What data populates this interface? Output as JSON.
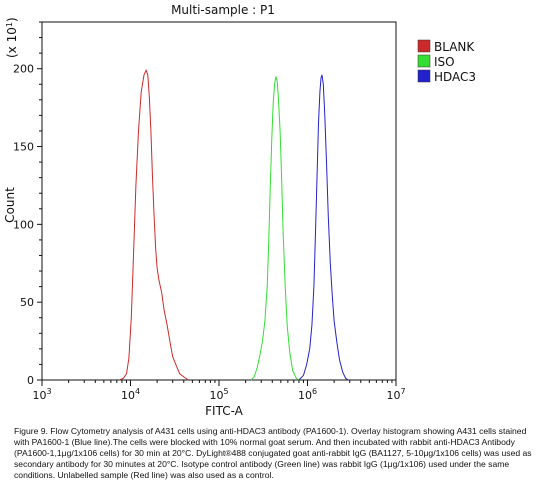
{
  "chart_data": {
    "type": "line",
    "title": "Multi-sample : P1",
    "xlabel": "FITC-A",
    "ylabel": "Count",
    "y_multiplier_label": "(x 10",
    "y_multiplier_exp": "1",
    "x_scale": "log",
    "xlim": [
      1000,
      10000000
    ],
    "ylim": [
      0,
      230
    ],
    "x_ticks": [
      {
        "base": "10",
        "exp": "3",
        "value": 1000
      },
      {
        "base": "10",
        "exp": "4",
        "value": 10000
      },
      {
        "base": "10",
        "exp": "5",
        "value": 100000
      },
      {
        "base": "10",
        "exp": "6",
        "value": 1000000
      },
      {
        "base": "10",
        "exp": "7",
        "value": 10000000
      }
    ],
    "y_ticks": [
      0,
      50,
      100,
      150,
      200
    ],
    "grid": false,
    "legend_position": "top-right",
    "series": [
      {
        "name": "BLANK",
        "color": "#cc2a2a",
        "points": [
          [
            7500,
            0
          ],
          [
            8300,
            1
          ],
          [
            9000,
            4
          ],
          [
            9600,
            14
          ],
          [
            10200,
            40
          ],
          [
            10800,
            80
          ],
          [
            11500,
            125
          ],
          [
            12300,
            160
          ],
          [
            13200,
            185
          ],
          [
            14200,
            196
          ],
          [
            15000,
            199
          ],
          [
            15700,
            196
          ],
          [
            16300,
            182
          ],
          [
            17000,
            160
          ],
          [
            17700,
            132
          ],
          [
            18400,
            108
          ],
          [
            19200,
            85
          ],
          [
            20000,
            72
          ],
          [
            21000,
            64
          ],
          [
            22500,
            56
          ],
          [
            24000,
            45
          ],
          [
            26000,
            35
          ],
          [
            28000,
            24
          ],
          [
            30000,
            15
          ],
          [
            33000,
            9
          ],
          [
            36000,
            4
          ],
          [
            40000,
            2
          ],
          [
            45000,
            0
          ]
        ]
      },
      {
        "name": "ISO",
        "color": "#33dd33",
        "points": [
          [
            230000,
            0
          ],
          [
            250000,
            2
          ],
          [
            270000,
            8
          ],
          [
            290000,
            16
          ],
          [
            310000,
            25
          ],
          [
            330000,
            38
          ],
          [
            350000,
            60
          ],
          [
            365000,
            90
          ],
          [
            380000,
            125
          ],
          [
            395000,
            155
          ],
          [
            410000,
            178
          ],
          [
            425000,
            190
          ],
          [
            440000,
            195
          ],
          [
            455000,
            192
          ],
          [
            470000,
            180
          ],
          [
            490000,
            160
          ],
          [
            510000,
            130
          ],
          [
            530000,
            95
          ],
          [
            560000,
            60
          ],
          [
            590000,
            35
          ],
          [
            630000,
            18
          ],
          [
            680000,
            6
          ],
          [
            750000,
            1
          ],
          [
            800000,
            0
          ]
        ]
      },
      {
        "name": "HDAC3",
        "color": "#2222cc",
        "points": [
          [
            800000,
            0
          ],
          [
            900000,
            3
          ],
          [
            980000,
            10
          ],
          [
            1060000,
            20
          ],
          [
            1120000,
            35
          ],
          [
            1180000,
            60
          ],
          [
            1230000,
            95
          ],
          [
            1280000,
            130
          ],
          [
            1330000,
            165
          ],
          [
            1380000,
            185
          ],
          [
            1420000,
            194
          ],
          [
            1460000,
            196
          ],
          [
            1510000,
            190
          ],
          [
            1570000,
            170
          ],
          [
            1640000,
            140
          ],
          [
            1720000,
            105
          ],
          [
            1810000,
            75
          ],
          [
            1900000,
            55
          ],
          [
            2000000,
            38
          ],
          [
            2150000,
            24
          ],
          [
            2300000,
            13
          ],
          [
            2500000,
            5
          ],
          [
            2700000,
            1
          ],
          [
            2900000,
            0
          ]
        ]
      }
    ]
  },
  "caption": "Figure 9. Flow Cytometry analysis of A431 cells using anti-HDAC3 antibody (PA1600-1).  Overlay histogram showing A431 cells stained with PA1600-1 (Blue line).The cells were blocked with 10% normal goat serum. And then incubated with rabbit anti-HDAC3 Antibody (PA1600-1,1μg/1x106 cells) for 30 min at 20°C. DyLight®488 conjugated goat anti-rabbit IgG (BA1127, 5-10μg/1x106 cells) was used as secondary antibody for 30 minutes at 20°C. Isotype control antibody (Green line) was rabbit IgG (1μg/1x106) used under the same conditions. Unlabelled sample (Red line) was also used as a control."
}
